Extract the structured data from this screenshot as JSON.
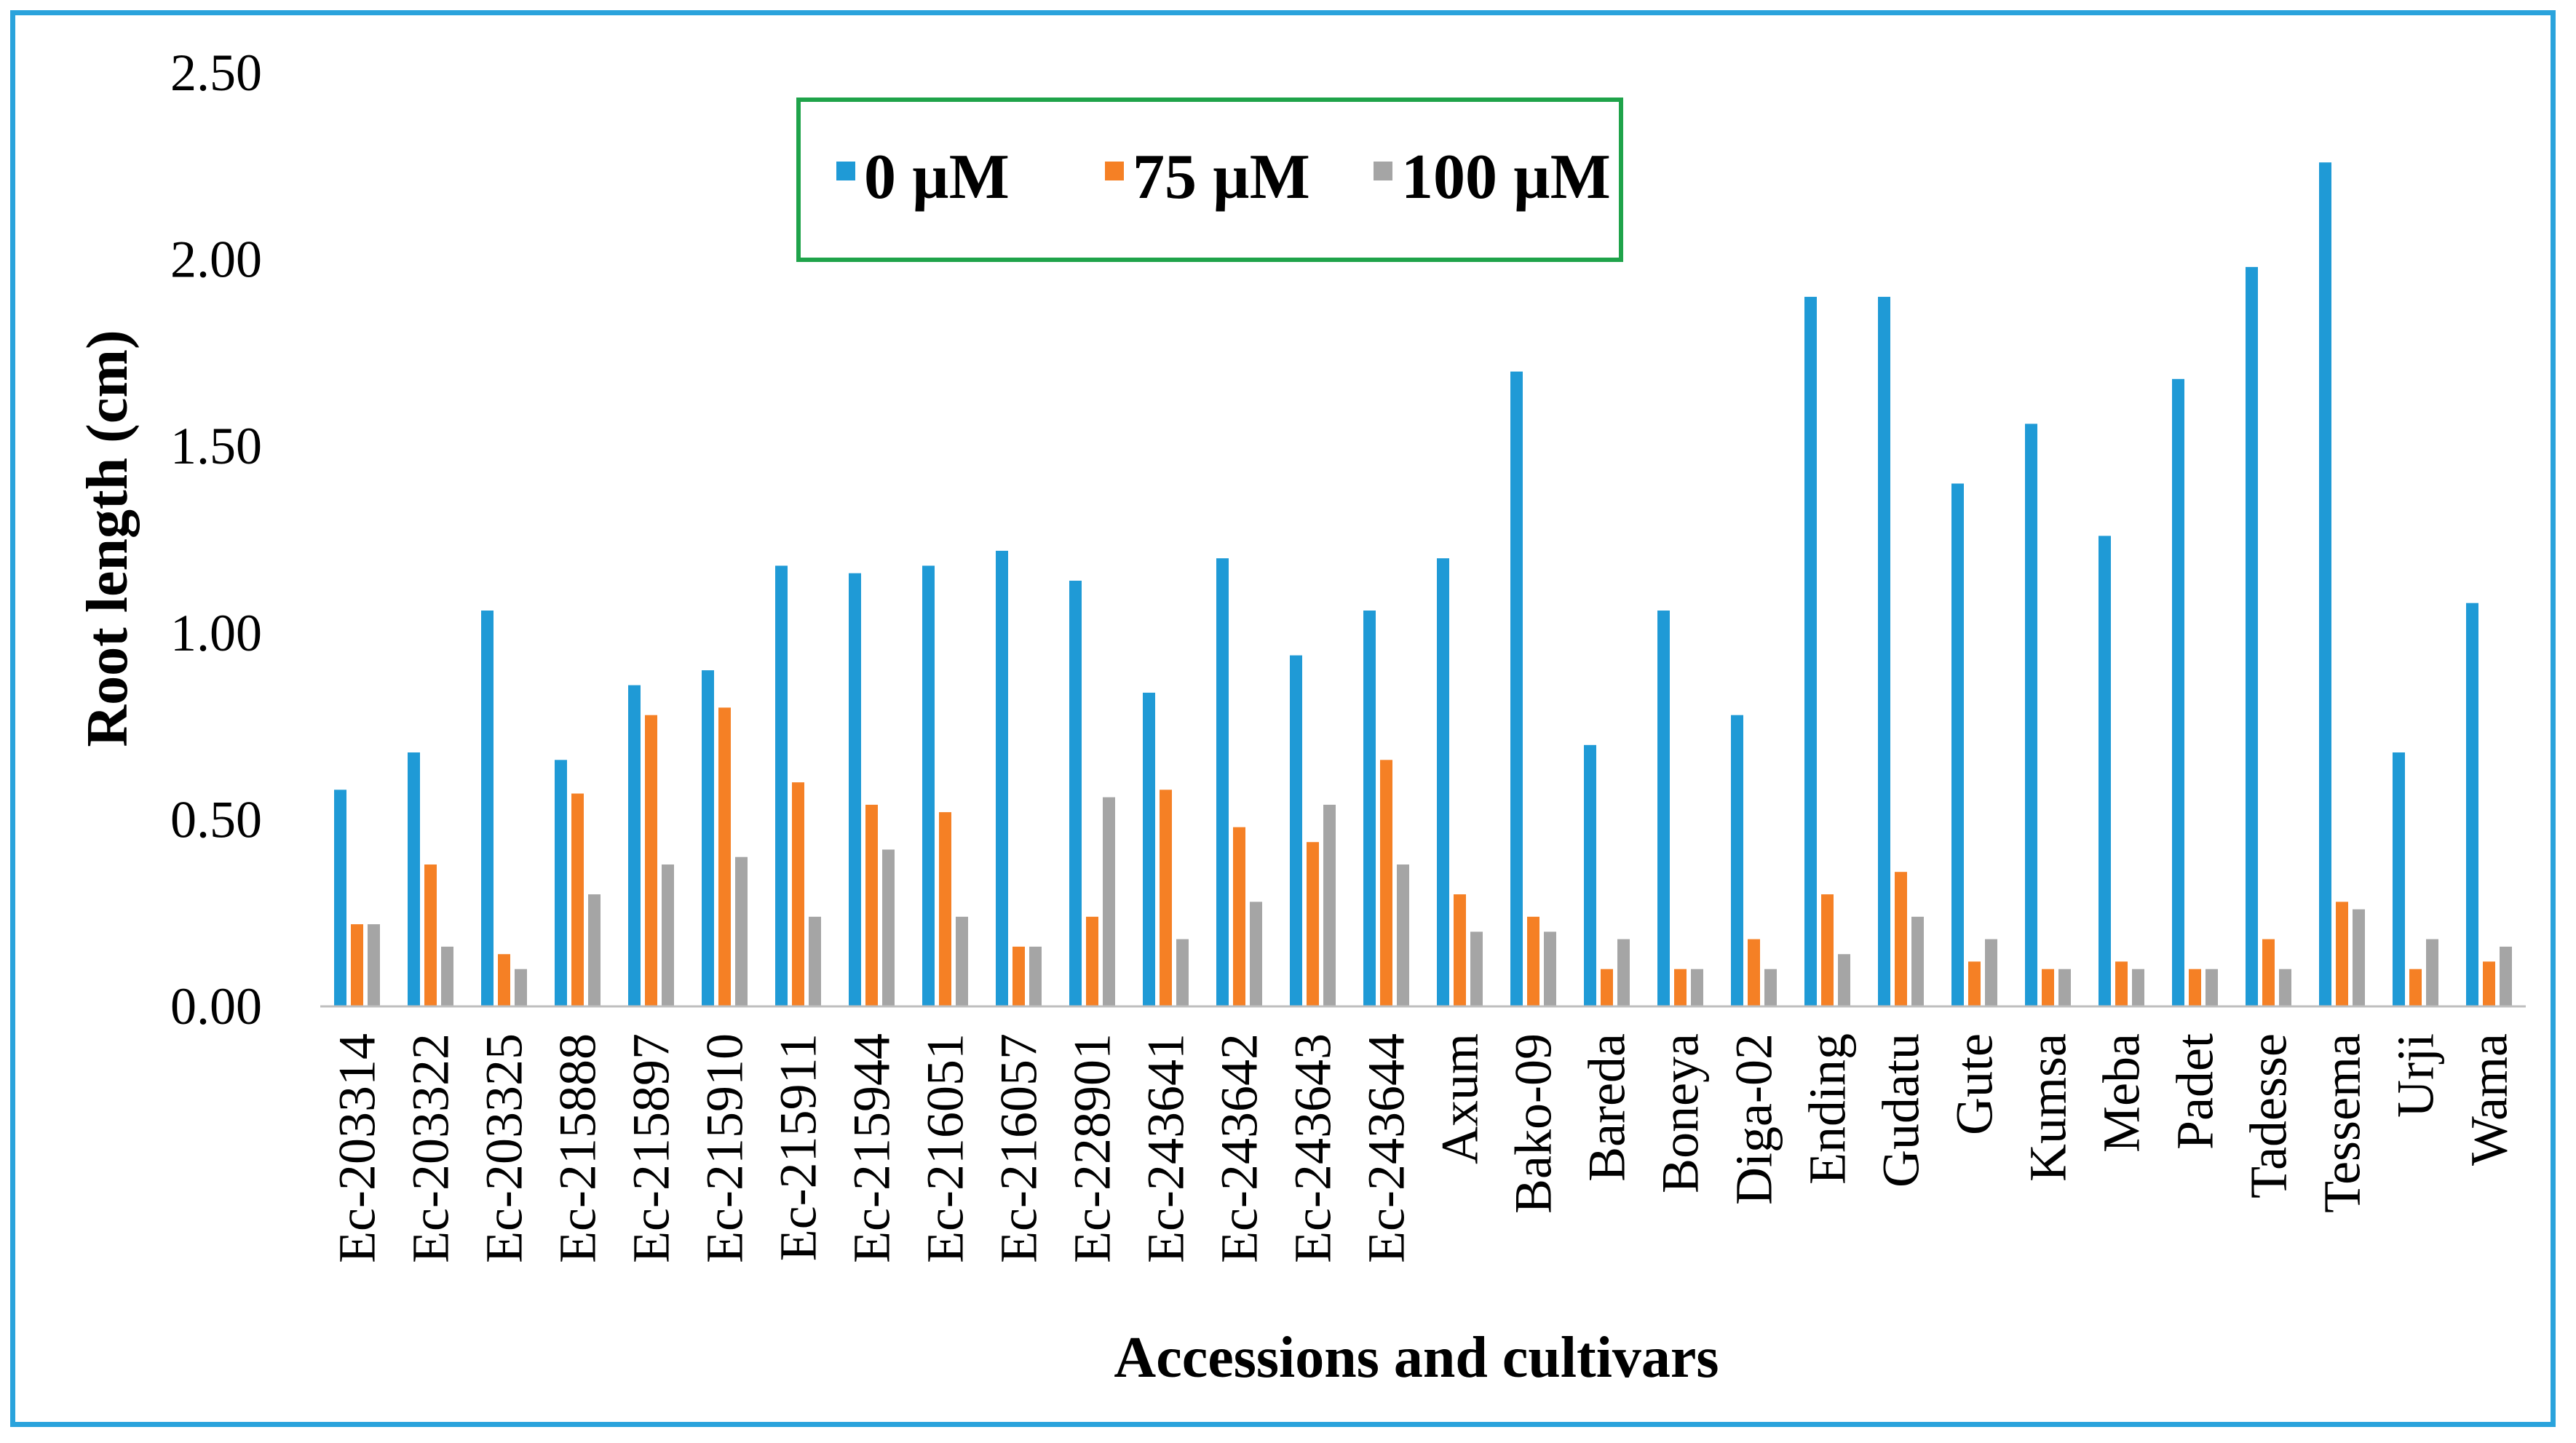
{
  "chart_data": {
    "type": "bar",
    "title": "",
    "xlabel": "Accessions and cultivars",
    "ylabel": "Root length (cm)",
    "ylim": [
      0,
      2.5
    ],
    "yticks": [
      "0.00",
      "0.50",
      "1.00",
      "1.50",
      "2.00",
      "2.50"
    ],
    "grid": false,
    "legend_position": "top-center",
    "categories": [
      "Ec-203314",
      "Ec-203322",
      "Ec-203325",
      "Ec-215888",
      "Ec-215897",
      "Ec-215910",
      "Ec-215911",
      "Ec-215944",
      "Ec-216051",
      "Ec-216057",
      "Ec-228901",
      "Ec-243641",
      "Ec-243642",
      "Ec-243643",
      "Ec-243644",
      "Axum",
      "Bako-09",
      "Bareda",
      "Boneya",
      "Diga-02",
      "Ending",
      "Gudatu",
      "Gute",
      "Kumsa",
      "Meba",
      "Padet",
      "Tadesse",
      "Tessema",
      "Urji",
      "Wama"
    ],
    "series": [
      {
        "name": "0 µM",
        "color": "#1f9ad6",
        "values": [
          0.58,
          0.68,
          1.06,
          0.66,
          0.86,
          0.9,
          1.18,
          1.16,
          1.18,
          1.22,
          1.14,
          0.84,
          1.2,
          0.94,
          1.06,
          1.2,
          1.7,
          0.7,
          1.06,
          0.78,
          1.9,
          1.9,
          1.4,
          1.56,
          1.26,
          1.68,
          1.98,
          2.26,
          0.68,
          1.08
        ]
      },
      {
        "name": "75 µM",
        "color": "#f58025",
        "values": [
          0.22,
          0.38,
          0.14,
          0.57,
          0.78,
          0.8,
          0.6,
          0.54,
          0.52,
          0.16,
          0.24,
          0.58,
          0.48,
          0.44,
          0.66,
          0.3,
          0.24,
          0.1,
          0.1,
          0.18,
          0.3,
          0.36,
          0.12,
          0.1,
          0.12,
          0.1,
          0.18,
          0.28,
          0.1,
          0.12
        ]
      },
      {
        "name": "100 µM",
        "color": "#a5a5a5",
        "values": [
          0.22,
          0.16,
          0.1,
          0.3,
          0.38,
          0.4,
          0.24,
          0.42,
          0.24,
          0.16,
          0.56,
          0.18,
          0.28,
          0.54,
          0.38,
          0.2,
          0.2,
          0.18,
          0.1,
          0.1,
          0.14,
          0.24,
          0.18,
          0.1,
          0.1,
          0.1,
          0.1,
          0.26,
          0.18,
          0.16
        ]
      }
    ]
  }
}
